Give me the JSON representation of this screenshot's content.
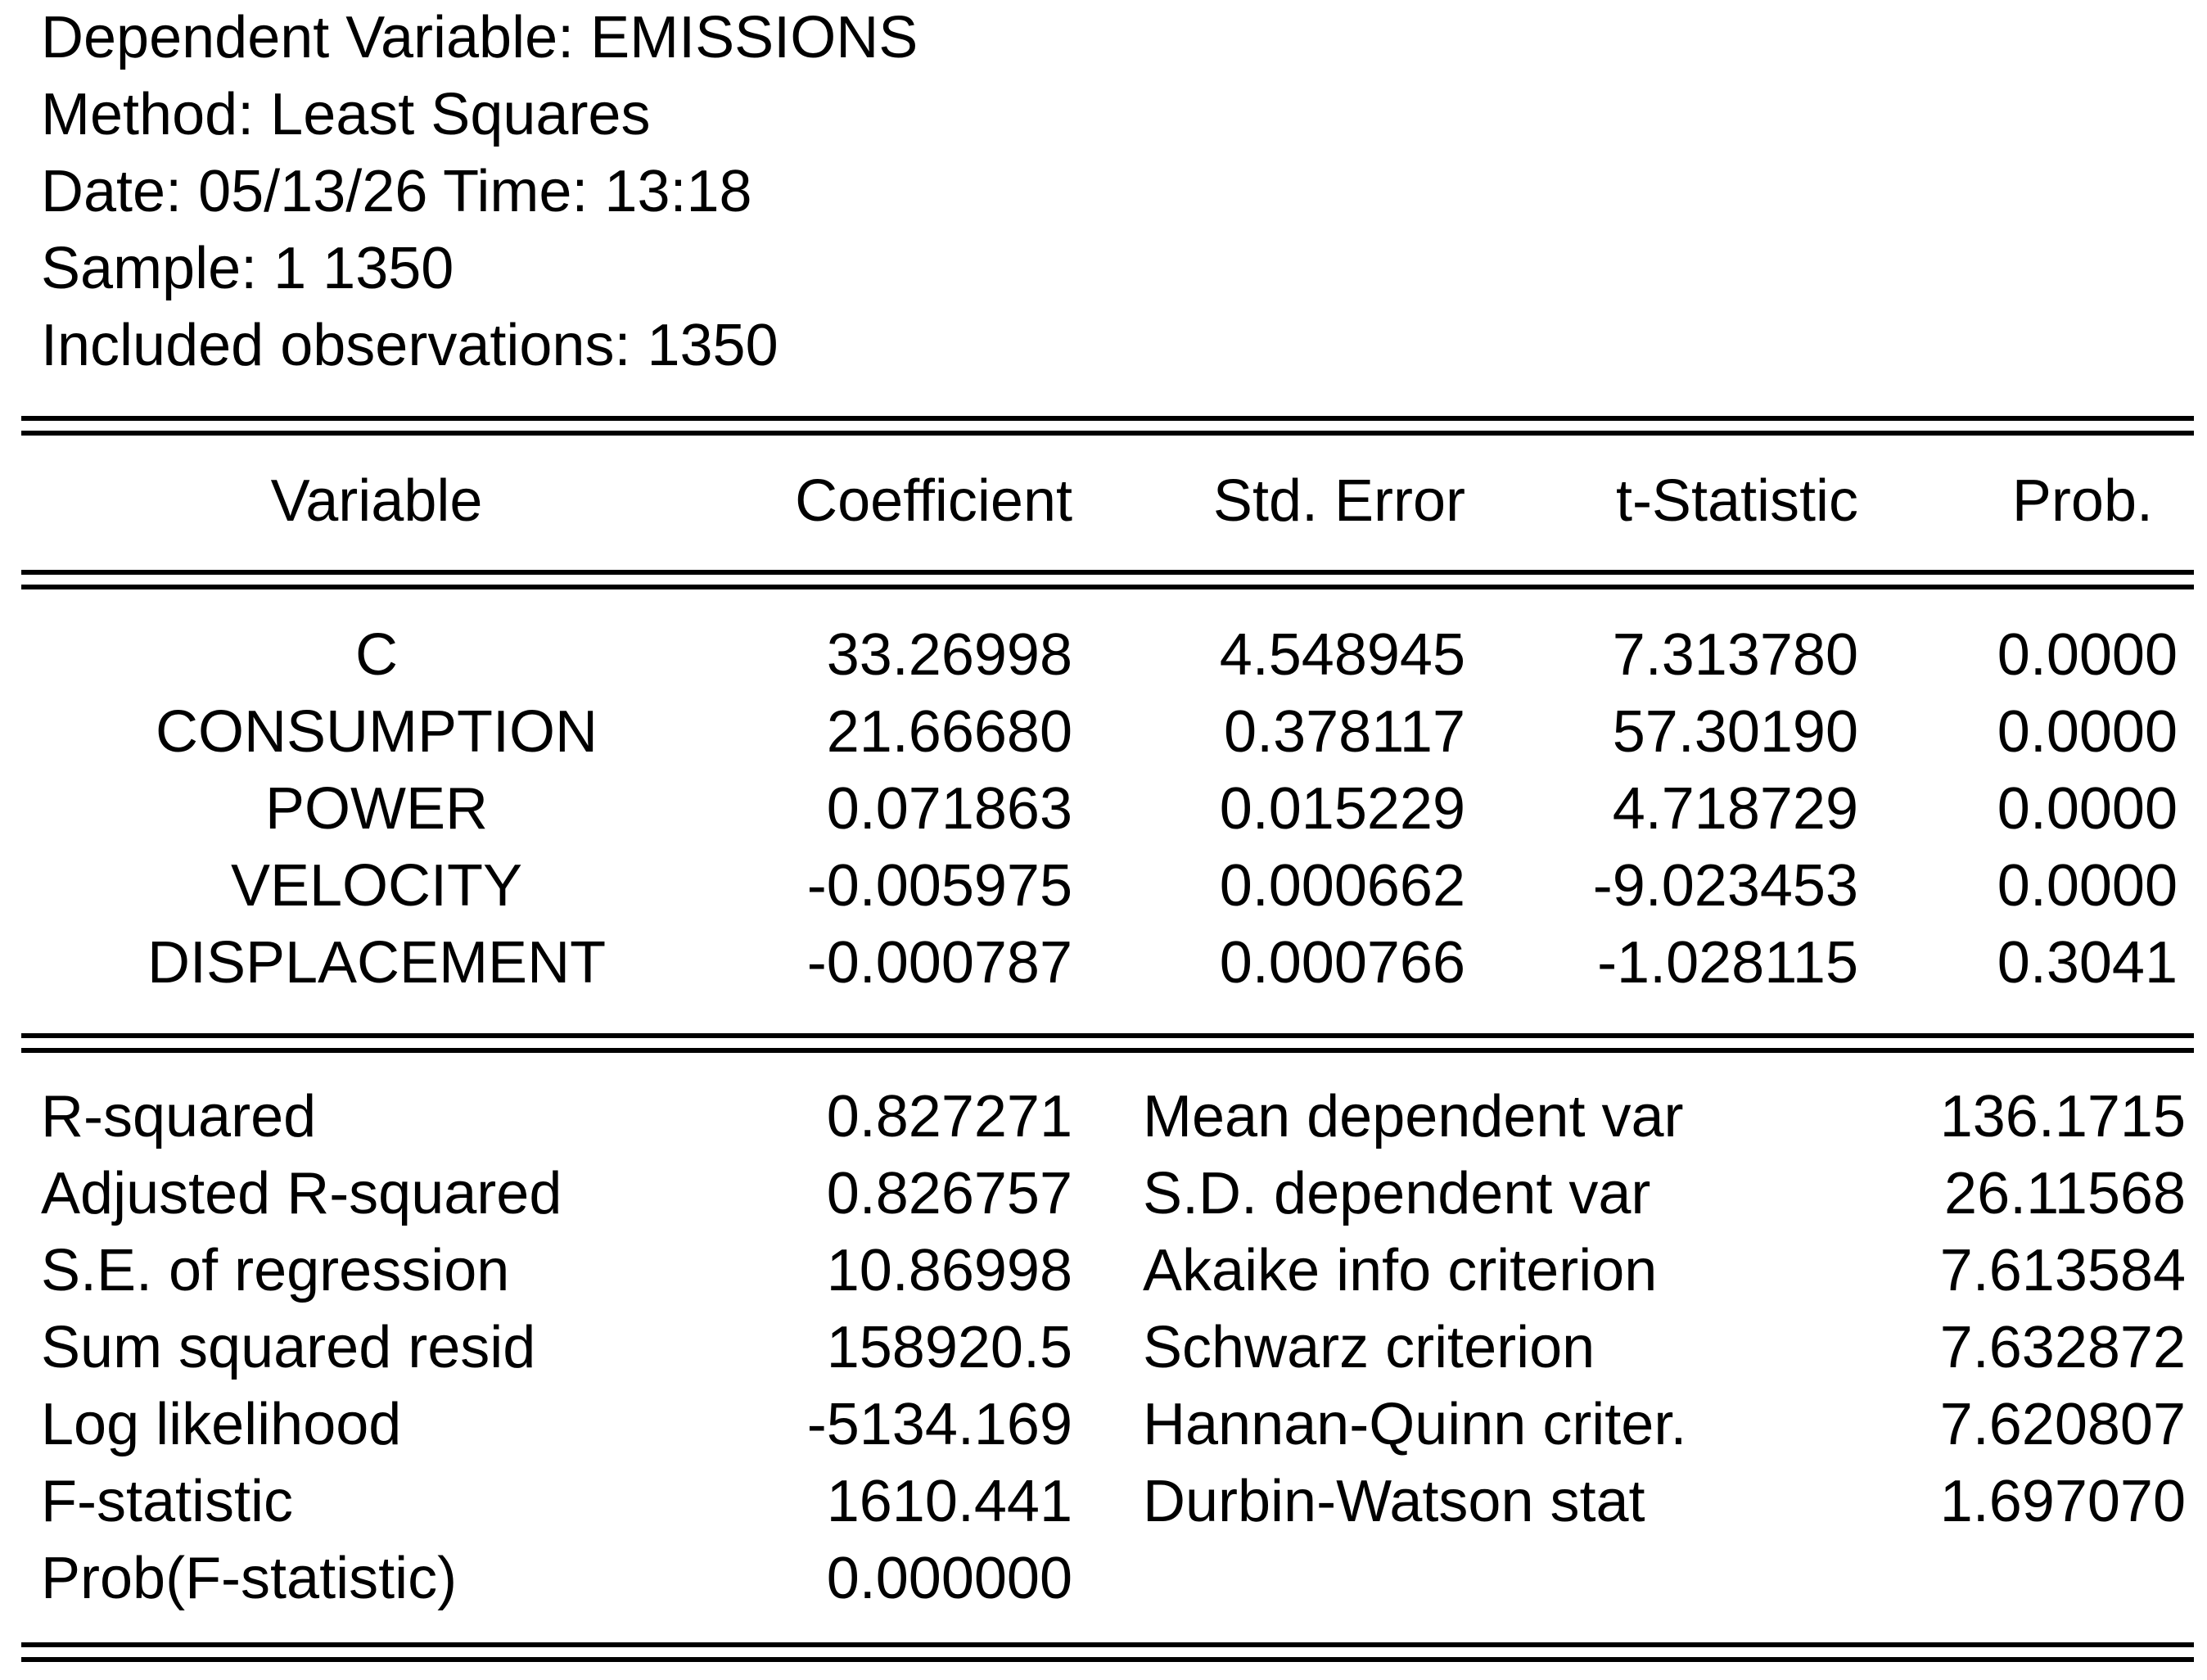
{
  "header": {
    "dependent_variable": "Dependent Variable: EMISSIONS",
    "method": "Method: Least Squares",
    "date_time": "Date: 05/13/26   Time: 13:18",
    "sample": "Sample: 1 1350",
    "included_observations": "Included observations: 1350"
  },
  "coef_table": {
    "columns": [
      "Variable",
      "Coefficient",
      "Std. Error",
      "t-Statistic",
      "Prob."
    ],
    "rows": [
      {
        "variable": "C",
        "coefficient": "33.26998",
        "std_error": "4.548945",
        "t_statistic": "7.313780",
        "prob": "0.0000"
      },
      {
        "variable": "CONSUMPTION",
        "coefficient": "21.66680",
        "std_error": "0.378117",
        "t_statistic": "57.30190",
        "prob": "0.0000"
      },
      {
        "variable": "POWER",
        "coefficient": "0.071863",
        "std_error": "0.015229",
        "t_statistic": "4.718729",
        "prob": "0.0000"
      },
      {
        "variable": "VELOCITY",
        "coefficient": "-0.005975",
        "std_error": "0.000662",
        "t_statistic": "-9.023453",
        "prob": "0.0000"
      },
      {
        "variable": "DISPLACEMENT",
        "coefficient": "-0.000787",
        "std_error": "0.000766",
        "t_statistic": "-1.028115",
        "prob": "0.3041"
      }
    ]
  },
  "stats": {
    "left": [
      {
        "label": "R-squared",
        "value": "0.827271"
      },
      {
        "label": "Adjusted R-squared",
        "value": "0.826757"
      },
      {
        "label": "S.E. of regression",
        "value": "10.86998"
      },
      {
        "label": "Sum squared resid",
        "value": "158920.5"
      },
      {
        "label": "Log likelihood",
        "value": "-5134.169"
      },
      {
        "label": "F-statistic",
        "value": "1610.441"
      },
      {
        "label": "Prob(F-statistic)",
        "value": "0.000000"
      }
    ],
    "right": [
      {
        "label": "Mean dependent var",
        "value": "136.1715"
      },
      {
        "label": "S.D. dependent var",
        "value": "26.11568"
      },
      {
        "label": "Akaike info criterion",
        "value": "7.613584"
      },
      {
        "label": "Schwarz criterion",
        "value": "7.632872"
      },
      {
        "label": "Hannan-Quinn criter.",
        "value": "7.620807"
      },
      {
        "label": "Durbin-Watson stat",
        "value": "1.697070"
      }
    ]
  }
}
